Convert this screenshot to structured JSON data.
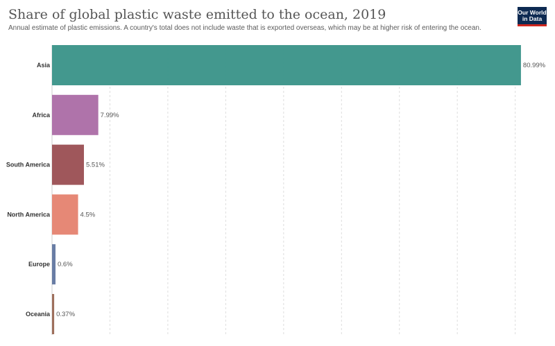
{
  "header": {
    "title": "Share of global plastic waste emitted to the ocean, 2019",
    "subtitle": "Annual estimate of plastic emissions. A country's total does not include waste that is exported overseas, which may be at higher risk of entering the ocean."
  },
  "logo": {
    "line1": "Our World",
    "line2": "in Data",
    "colors": {
      "background": "#0d2a52",
      "accent": "#ce261e"
    }
  },
  "chart_data": {
    "type": "bar",
    "orientation": "horizontal",
    "categories": [
      "Asia",
      "Africa",
      "South America",
      "North America",
      "Europe",
      "Oceania"
    ],
    "values": [
      80.99,
      7.99,
      5.51,
      4.5,
      0.6,
      0.37
    ],
    "value_labels": [
      "80.99%",
      "7.99%",
      "5.51%",
      "4.5%",
      "0.6%",
      "0.37%"
    ],
    "colors": [
      "#3d958a",
      "#ac6ea7",
      "#9c5256",
      "#e58472",
      "#6479a2",
      "#9b6a57"
    ],
    "xlim": [
      0,
      81
    ],
    "grid": "vertical-dashed",
    "legend": "none"
  }
}
